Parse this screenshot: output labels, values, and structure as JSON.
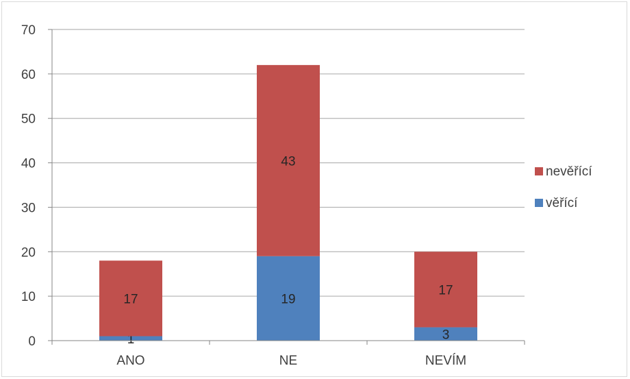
{
  "chart_data": {
    "type": "bar",
    "stacked": true,
    "title": "",
    "xlabel": "",
    "ylabel": "",
    "categories": [
      "ANO",
      "NE",
      "NEVÍM"
    ],
    "series": [
      {
        "name": "věřící",
        "values": [
          1,
          19,
          3
        ],
        "color": "#4f81bd"
      },
      {
        "name": "nevěřící",
        "values": [
          17,
          43,
          17
        ],
        "color": "#c0504d"
      }
    ],
    "ylim": [
      0,
      70
    ],
    "yticks": [
      0,
      10,
      20,
      30,
      40,
      50,
      60,
      70
    ],
    "grid": true,
    "legend_position": "right",
    "legend_order": [
      "nevěřící",
      "věřící"
    ],
    "data_labels": true
  }
}
